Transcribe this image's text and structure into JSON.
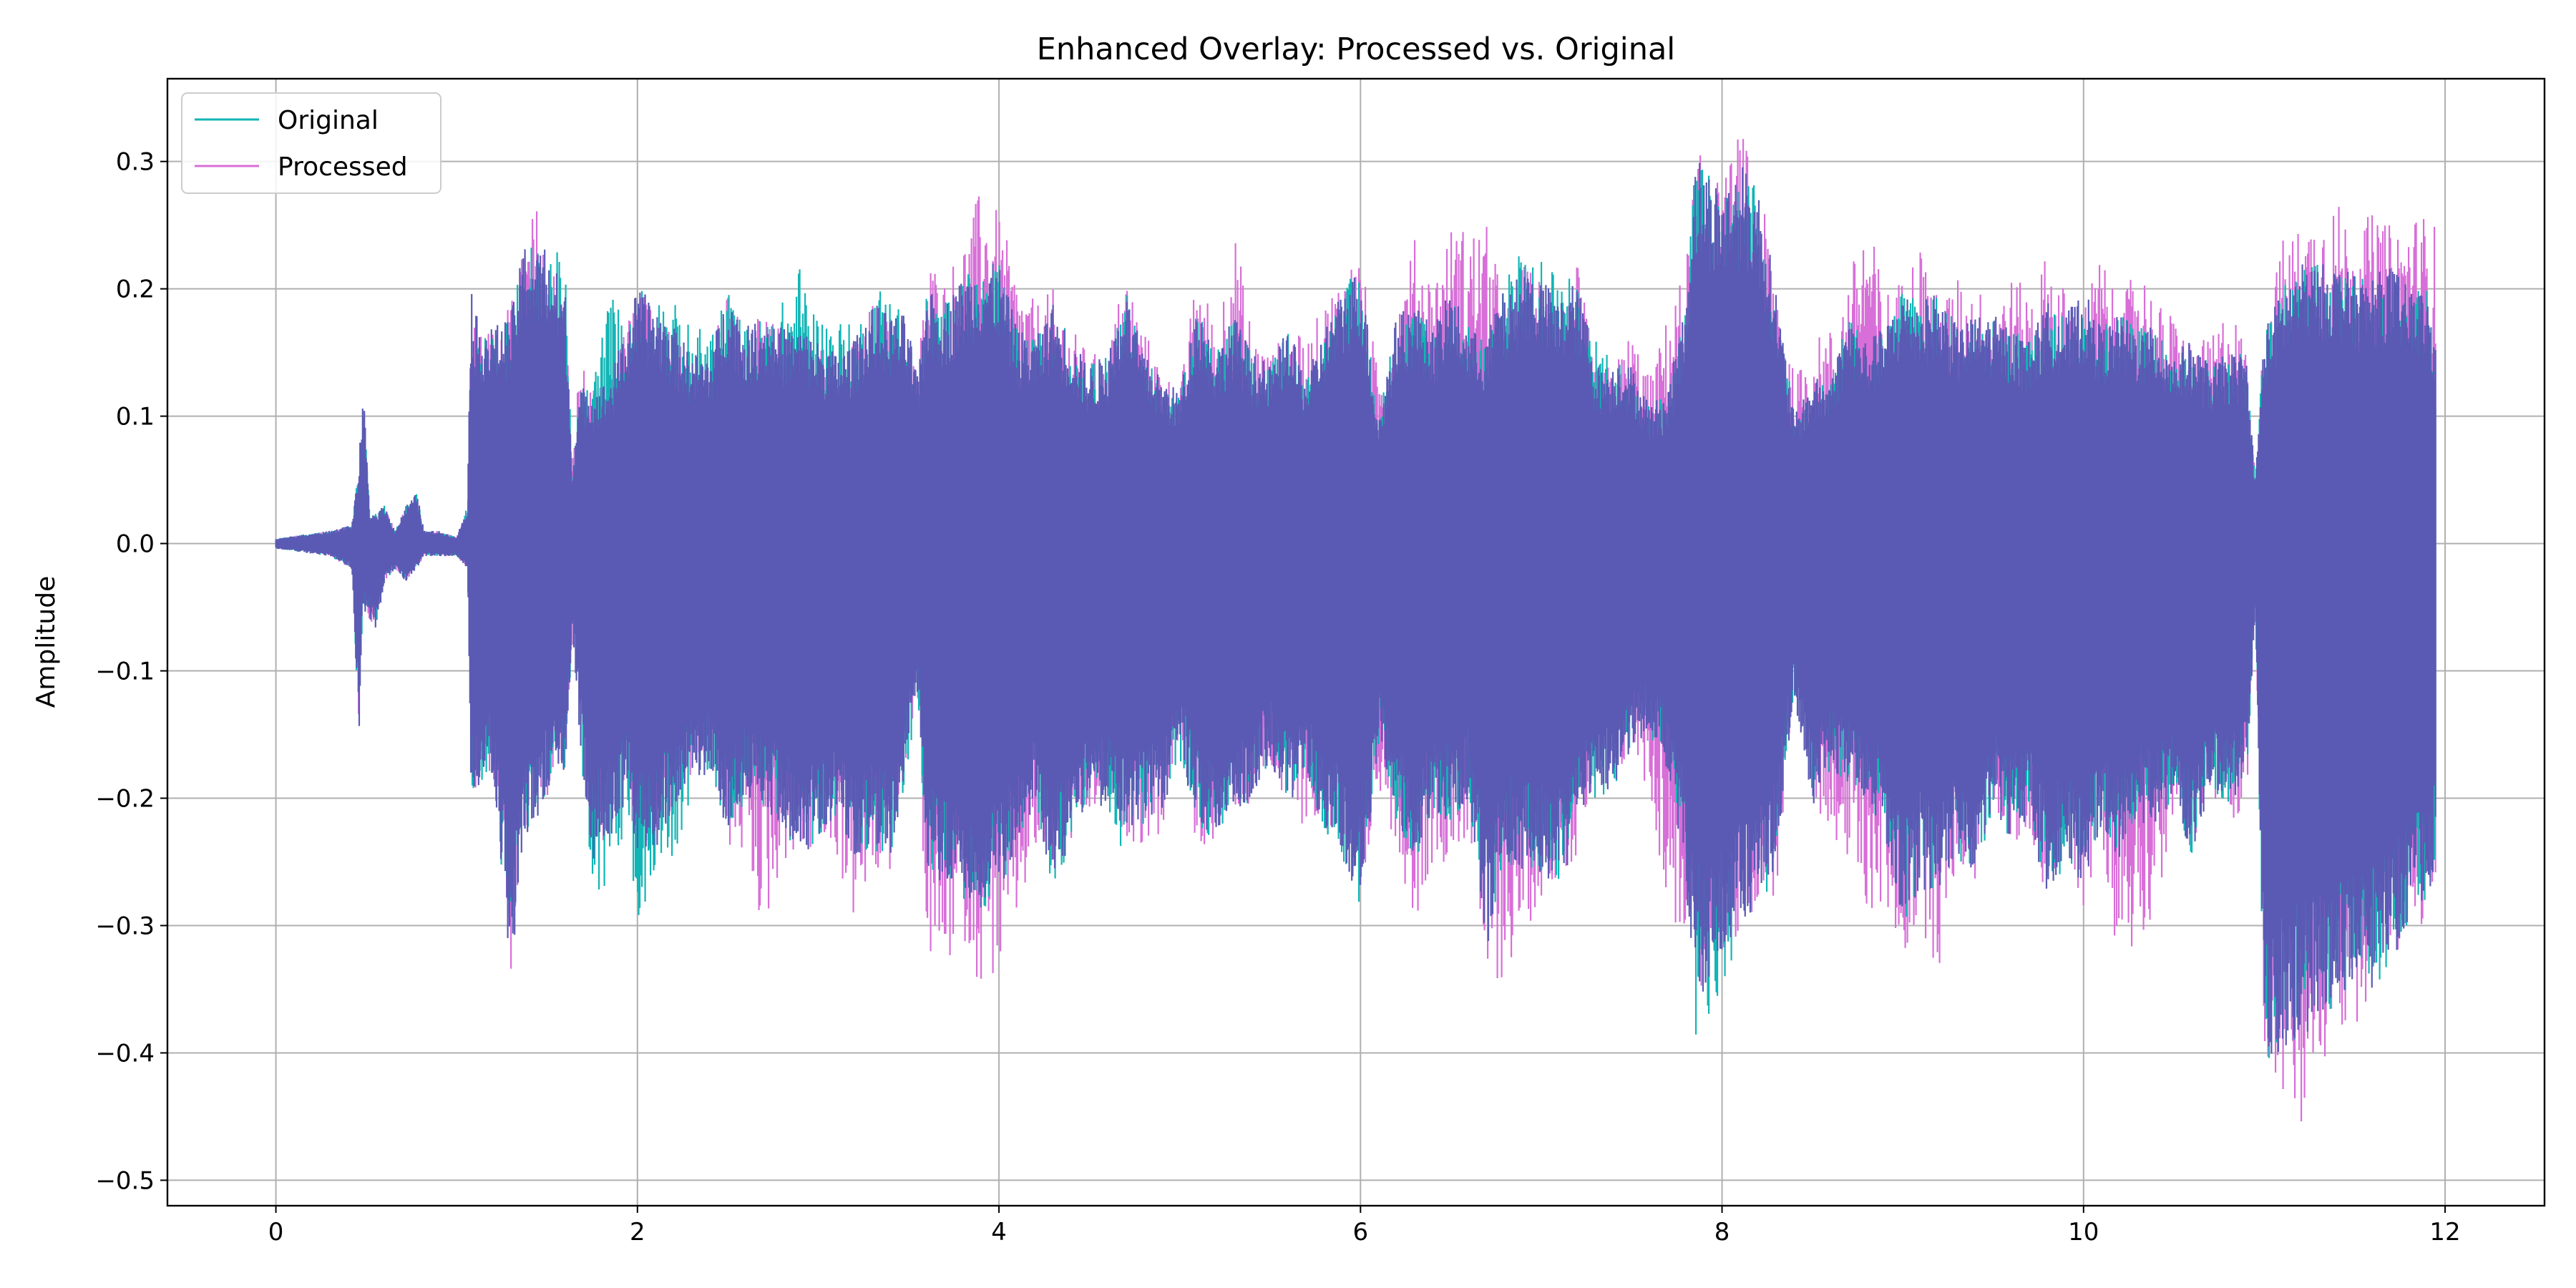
{
  "chart_data": {
    "type": "line",
    "title": "Enhanced Overlay: Processed vs. Original",
    "xlabel": "",
    "ylabel": "Amplitude",
    "xlim": [
      -0.6,
      12.55
    ],
    "ylim": [
      -0.52,
      0.365
    ],
    "xticks": [
      0,
      2,
      4,
      6,
      8,
      10,
      12
    ],
    "xtick_labels": [
      "0",
      "2",
      "4",
      "6",
      "8",
      "10",
      "12"
    ],
    "yticks": [
      0.3,
      0.2,
      0.1,
      0.0,
      -0.1,
      -0.2,
      -0.3,
      -0.4,
      -0.5
    ],
    "ytick_labels": [
      "0.3",
      "0.2",
      "0.1",
      "0.0",
      "−0.1",
      "−0.2",
      "−0.3",
      "−0.4",
      "−0.5"
    ],
    "grid": true,
    "legend_position": "top-left",
    "series": [
      {
        "name": "Original",
        "color": "#12b5b5",
        "envelope": {
          "x": [
            0,
            0.3,
            0.42,
            0.46,
            0.48,
            0.52,
            0.56,
            0.6,
            0.66,
            0.72,
            0.78,
            0.82,
            0.9,
            1.0,
            1.06,
            1.08,
            1.1,
            1.2,
            1.3,
            1.38,
            1.44,
            1.5,
            1.6,
            1.64,
            1.68,
            1.75,
            1.85,
            1.95,
            2.0,
            2.1,
            2.2,
            2.3,
            2.4,
            2.5,
            2.6,
            2.7,
            2.8,
            2.9,
            3.0,
            3.1,
            3.2,
            3.3,
            3.4,
            3.5,
            3.55,
            3.6,
            3.7,
            3.8,
            3.9,
            4.0,
            4.1,
            4.2,
            4.3,
            4.4,
            4.5,
            4.6,
            4.7,
            4.8,
            4.9,
            5.0,
            5.1,
            5.2,
            5.3,
            5.4,
            5.5,
            5.6,
            5.7,
            5.8,
            5.9,
            6.0,
            6.1,
            6.2,
            6.3,
            6.4,
            6.5,
            6.6,
            6.7,
            6.8,
            6.9,
            7.0,
            7.1,
            7.2,
            7.3,
            7.4,
            7.5,
            7.6,
            7.7,
            7.8,
            7.85,
            7.9,
            8.0,
            8.1,
            8.2,
            8.3,
            8.4,
            8.5,
            8.6,
            8.7,
            8.8,
            8.9,
            9.0,
            9.1,
            9.2,
            9.3,
            9.4,
            9.5,
            9.6,
            9.7,
            9.8,
            9.9,
            10.0,
            10.1,
            10.2,
            10.3,
            10.4,
            10.5,
            10.6,
            10.7,
            10.8,
            10.9,
            10.95,
            11.0,
            11.1,
            11.2,
            11.3,
            11.4,
            11.5,
            11.6,
            11.7,
            11.8,
            11.9,
            11.95
          ],
          "upper": [
            0.004,
            0.01,
            0.015,
            0.06,
            0.13,
            0.02,
            0.025,
            0.03,
            0.01,
            0.03,
            0.04,
            0.01,
            0.01,
            0.005,
            0.03,
            0.21,
            0.18,
            0.17,
            0.18,
            0.24,
            0.23,
            0.24,
            0.22,
            0.06,
            0.12,
            0.13,
            0.2,
            0.17,
            0.21,
            0.2,
            0.19,
            0.17,
            0.17,
            0.2,
            0.17,
            0.18,
            0.19,
            0.22,
            0.18,
            0.18,
            0.17,
            0.2,
            0.21,
            0.17,
            0.13,
            0.2,
            0.19,
            0.21,
            0.22,
            0.22,
            0.17,
            0.16,
            0.19,
            0.16,
            0.14,
            0.15,
            0.2,
            0.15,
            0.13,
            0.12,
            0.19,
            0.15,
            0.18,
            0.15,
            0.14,
            0.17,
            0.13,
            0.17,
            0.2,
            0.22,
            0.1,
            0.18,
            0.19,
            0.17,
            0.2,
            0.17,
            0.16,
            0.22,
            0.23,
            0.23,
            0.22,
            0.2,
            0.16,
            0.15,
            0.14,
            0.11,
            0.12,
            0.19,
            0.31,
            0.3,
            0.28,
            0.3,
            0.28,
            0.2,
            0.1,
            0.13,
            0.13,
            0.18,
            0.16,
            0.17,
            0.2,
            0.19,
            0.2,
            0.17,
            0.18,
            0.18,
            0.17,
            0.16,
            0.19,
            0.18,
            0.2,
            0.17,
            0.18,
            0.17,
            0.17,
            0.15,
            0.16,
            0.14,
            0.15,
            0.15,
            0.05,
            0.17,
            0.2,
            0.22,
            0.22,
            0.22,
            0.21,
            0.21,
            0.22,
            0.2,
            0.2,
            0.15
          ],
          "lower": [
            -0.004,
            -0.01,
            -0.02,
            -0.15,
            -0.05,
            -0.06,
            -0.07,
            -0.03,
            -0.02,
            -0.03,
            -0.02,
            -0.01,
            -0.01,
            -0.01,
            -0.02,
            -0.21,
            -0.2,
            -0.18,
            -0.34,
            -0.23,
            -0.22,
            -0.2,
            -0.18,
            -0.07,
            -0.15,
            -0.3,
            -0.27,
            -0.22,
            -0.32,
            -0.25,
            -0.25,
            -0.2,
            -0.18,
            -0.23,
            -0.2,
            -0.21,
            -0.22,
            -0.25,
            -0.23,
            -0.22,
            -0.25,
            -0.24,
            -0.25,
            -0.18,
            -0.12,
            -0.26,
            -0.27,
            -0.28,
            -0.29,
            -0.27,
            -0.25,
            -0.2,
            -0.28,
            -0.23,
            -0.2,
            -0.21,
            -0.25,
            -0.22,
            -0.21,
            -0.17,
            -0.22,
            -0.24,
            -0.22,
            -0.2,
            -0.17,
            -0.21,
            -0.18,
            -0.23,
            -0.25,
            -0.29,
            -0.16,
            -0.22,
            -0.25,
            -0.21,
            -0.22,
            -0.2,
            -0.32,
            -0.25,
            -0.26,
            -0.26,
            -0.28,
            -0.22,
            -0.2,
            -0.2,
            -0.16,
            -0.15,
            -0.18,
            -0.26,
            -0.41,
            -0.38,
            -0.36,
            -0.3,
            -0.3,
            -0.25,
            -0.12,
            -0.21,
            -0.18,
            -0.19,
            -0.2,
            -0.23,
            -0.3,
            -0.27,
            -0.28,
            -0.25,
            -0.26,
            -0.22,
            -0.23,
            -0.22,
            -0.28,
            -0.26,
            -0.27,
            -0.22,
            -0.25,
            -0.22,
            -0.22,
            -0.2,
            -0.25,
            -0.19,
            -0.21,
            -0.19,
            -0.05,
            -0.44,
            -0.4,
            -0.39,
            -0.38,
            -0.37,
            -0.34,
            -0.35,
            -0.33,
            -0.3,
            -0.28,
            -0.25
          ]
        }
      },
      {
        "name": "Processed",
        "color": "#d86fd8",
        "envelope": {
          "x": [
            0,
            0.3,
            0.42,
            0.46,
            0.48,
            0.52,
            0.56,
            0.6,
            0.66,
            0.72,
            0.78,
            0.82,
            0.9,
            1.0,
            1.06,
            1.08,
            1.1,
            1.2,
            1.3,
            1.38,
            1.44,
            1.5,
            1.6,
            1.64,
            1.68,
            1.75,
            1.85,
            1.95,
            2.0,
            2.1,
            2.2,
            2.3,
            2.4,
            2.5,
            2.6,
            2.7,
            2.8,
            2.9,
            3.0,
            3.1,
            3.2,
            3.3,
            3.4,
            3.5,
            3.55,
            3.6,
            3.7,
            3.8,
            3.9,
            4.0,
            4.1,
            4.2,
            4.3,
            4.4,
            4.5,
            4.6,
            4.7,
            4.8,
            4.9,
            5.0,
            5.1,
            5.2,
            5.3,
            5.4,
            5.5,
            5.6,
            5.7,
            5.8,
            5.9,
            6.0,
            6.1,
            6.2,
            6.3,
            6.4,
            6.5,
            6.6,
            6.7,
            6.8,
            6.9,
            7.0,
            7.1,
            7.2,
            7.3,
            7.4,
            7.5,
            7.6,
            7.7,
            7.8,
            7.85,
            7.9,
            8.0,
            8.1,
            8.2,
            8.3,
            8.4,
            8.5,
            8.6,
            8.7,
            8.8,
            8.9,
            9.0,
            9.1,
            9.2,
            9.3,
            9.4,
            9.5,
            9.6,
            9.7,
            9.8,
            9.9,
            10.0,
            10.1,
            10.2,
            10.3,
            10.4,
            10.5,
            10.6,
            10.7,
            10.8,
            10.9,
            10.95,
            11.0,
            11.1,
            11.2,
            11.3,
            11.4,
            11.5,
            11.6,
            11.7,
            11.8,
            11.9,
            11.95
          ],
          "upper": [
            0.004,
            0.01,
            0.015,
            0.06,
            0.13,
            0.02,
            0.025,
            0.03,
            0.01,
            0.03,
            0.04,
            0.01,
            0.01,
            0.005,
            0.03,
            0.21,
            0.18,
            0.17,
            0.19,
            0.24,
            0.27,
            0.23,
            0.2,
            0.06,
            0.15,
            0.12,
            0.13,
            0.18,
            0.2,
            0.19,
            0.17,
            0.15,
            0.15,
            0.2,
            0.17,
            0.18,
            0.17,
            0.17,
            0.16,
            0.15,
            0.16,
            0.19,
            0.18,
            0.18,
            0.13,
            0.23,
            0.21,
            0.24,
            0.28,
            0.26,
            0.21,
            0.19,
            0.2,
            0.17,
            0.15,
            0.15,
            0.22,
            0.17,
            0.14,
            0.12,
            0.22,
            0.17,
            0.25,
            0.17,
            0.15,
            0.17,
            0.16,
            0.19,
            0.22,
            0.23,
            0.13,
            0.19,
            0.24,
            0.21,
            0.25,
            0.25,
            0.25,
            0.19,
            0.22,
            0.21,
            0.19,
            0.22,
            0.14,
            0.14,
            0.17,
            0.13,
            0.18,
            0.22,
            0.3,
            0.31,
            0.28,
            0.33,
            0.28,
            0.22,
            0.13,
            0.16,
            0.17,
            0.21,
            0.26,
            0.2,
            0.21,
            0.24,
            0.19,
            0.21,
            0.2,
            0.2,
            0.21,
            0.2,
            0.23,
            0.2,
            0.19,
            0.23,
            0.18,
            0.23,
            0.19,
            0.18,
            0.16,
            0.16,
            0.19,
            0.16,
            0.05,
            0.18,
            0.24,
            0.25,
            0.27,
            0.27,
            0.25,
            0.26,
            0.25,
            0.26,
            0.26,
            0.25
          ],
          "lower": [
            -0.004,
            -0.01,
            -0.02,
            -0.15,
            -0.05,
            -0.06,
            -0.07,
            -0.03,
            -0.02,
            -0.03,
            -0.02,
            -0.01,
            -0.01,
            -0.01,
            -0.02,
            -0.21,
            -0.2,
            -0.18,
            -0.34,
            -0.23,
            -0.22,
            -0.2,
            -0.18,
            -0.07,
            -0.15,
            -0.25,
            -0.23,
            -0.2,
            -0.25,
            -0.24,
            -0.21,
            -0.19,
            -0.18,
            -0.24,
            -0.25,
            -0.31,
            -0.25,
            -0.25,
            -0.24,
            -0.25,
            -0.3,
            -0.27,
            -0.26,
            -0.16,
            -0.12,
            -0.33,
            -0.34,
            -0.31,
            -0.35,
            -0.34,
            -0.3,
            -0.25,
            -0.26,
            -0.24,
            -0.22,
            -0.21,
            -0.23,
            -0.24,
            -0.23,
            -0.15,
            -0.25,
            -0.23,
            -0.21,
            -0.21,
            -0.18,
            -0.22,
            -0.22,
            -0.23,
            -0.24,
            -0.3,
            -0.19,
            -0.24,
            -0.3,
            -0.25,
            -0.25,
            -0.23,
            -0.36,
            -0.34,
            -0.31,
            -0.28,
            -0.26,
            -0.25,
            -0.19,
            -0.2,
            -0.16,
            -0.2,
            -0.29,
            -0.32,
            -0.34,
            -0.36,
            -0.33,
            -0.31,
            -0.28,
            -0.28,
            -0.12,
            -0.21,
            -0.22,
            -0.26,
            -0.29,
            -0.29,
            -0.33,
            -0.3,
            -0.34,
            -0.25,
            -0.27,
            -0.2,
            -0.25,
            -0.23,
            -0.28,
            -0.24,
            -0.29,
            -0.23,
            -0.34,
            -0.31,
            -0.29,
            -0.22,
            -0.24,
            -0.21,
            -0.22,
            -0.21,
            -0.05,
            -0.4,
            -0.44,
            -0.48,
            -0.42,
            -0.4,
            -0.38,
            -0.35,
            -0.33,
            -0.32,
            -0.3,
            -0.3
          ]
        }
      }
    ]
  }
}
